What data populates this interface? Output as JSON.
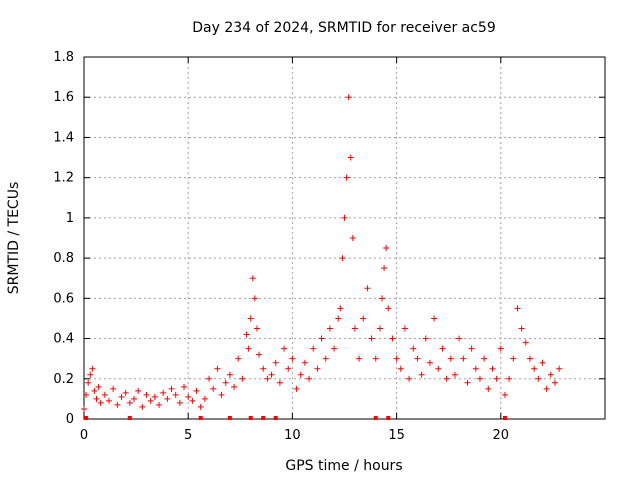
{
  "chart_data": {
    "type": "scatter",
    "title": "Day 234 of 2024, SRMTID for receiver ac59",
    "xlabel": "GPS time / hours",
    "ylabel": "SRMTID / TECUs",
    "xlim": [
      0,
      25
    ],
    "ylim": [
      0,
      1.8
    ],
    "x_ticks": [
      0,
      5,
      10,
      15,
      20
    ],
    "x_tick_labels": [
      "0",
      "5",
      "10",
      "15",
      "20"
    ],
    "y_ticks": [
      0,
      0.2,
      0.4,
      0.6,
      0.8,
      1.0,
      1.2,
      1.4,
      1.6,
      1.8
    ],
    "y_tick_labels": [
      "0",
      "0.2",
      "0.4",
      "0.6",
      "0.8",
      "1",
      "1.2",
      "1.4",
      "1.6",
      "1.8"
    ],
    "grid": true,
    "marker": "+",
    "color": "#ff0000",
    "series": [
      {
        "name": "SRMTID",
        "x": [
          0.0,
          0.1,
          0.2,
          0.3,
          0.4,
          0.5,
          0.6,
          0.7,
          0.8,
          1.0,
          1.2,
          1.4,
          1.6,
          1.8,
          2.0,
          2.2,
          2.4,
          2.6,
          2.8,
          3.0,
          3.2,
          3.4,
          3.6,
          3.8,
          4.0,
          4.2,
          4.4,
          4.6,
          4.8,
          5.0,
          5.2,
          5.4,
          5.6,
          5.8,
          6.0,
          6.2,
          6.4,
          6.6,
          6.8,
          7.0,
          7.2,
          7.4,
          7.6,
          7.8,
          7.9,
          8.0,
          8.1,
          8.2,
          8.3,
          8.4,
          8.6,
          8.8,
          9.0,
          9.2,
          9.4,
          9.6,
          9.8,
          10.0,
          10.2,
          10.4,
          10.6,
          10.8,
          11.0,
          11.2,
          11.4,
          11.6,
          11.8,
          12.0,
          12.2,
          12.3,
          12.4,
          12.5,
          12.6,
          12.7,
          12.8,
          12.9,
          13.0,
          13.2,
          13.4,
          13.6,
          13.8,
          14.0,
          14.2,
          14.3,
          14.4,
          14.5,
          14.6,
          14.8,
          15.0,
          15.2,
          15.4,
          15.6,
          15.8,
          16.0,
          16.2,
          16.4,
          16.6,
          16.8,
          17.0,
          17.2,
          17.4,
          17.6,
          17.8,
          18.0,
          18.2,
          18.4,
          18.6,
          18.8,
          19.0,
          19.2,
          19.4,
          19.6,
          19.8,
          20.0,
          20.2,
          20.4,
          20.6,
          20.8,
          21.0,
          21.2,
          21.4,
          21.6,
          21.8,
          22.0,
          22.2,
          22.4,
          22.6,
          22.8
        ],
        "y": [
          0.05,
          0.12,
          0.18,
          0.22,
          0.25,
          0.14,
          0.1,
          0.16,
          0.08,
          0.12,
          0.09,
          0.15,
          0.07,
          0.11,
          0.13,
          0.08,
          0.1,
          0.14,
          0.06,
          0.12,
          0.09,
          0.11,
          0.07,
          0.13,
          0.1,
          0.15,
          0.12,
          0.08,
          0.16,
          0.11,
          0.09,
          0.14,
          0.06,
          0.1,
          0.2,
          0.15,
          0.25,
          0.12,
          0.18,
          0.22,
          0.16,
          0.3,
          0.2,
          0.42,
          0.35,
          0.5,
          0.7,
          0.6,
          0.45,
          0.32,
          0.25,
          0.2,
          0.22,
          0.28,
          0.18,
          0.35,
          0.25,
          0.3,
          0.15,
          0.22,
          0.28,
          0.2,
          0.35,
          0.25,
          0.4,
          0.3,
          0.45,
          0.35,
          0.5,
          0.55,
          0.8,
          1.0,
          1.2,
          1.6,
          1.3,
          0.9,
          0.45,
          0.3,
          0.5,
          0.65,
          0.4,
          0.3,
          0.45,
          0.6,
          0.75,
          0.85,
          0.55,
          0.4,
          0.3,
          0.25,
          0.45,
          0.2,
          0.35,
          0.3,
          0.22,
          0.4,
          0.28,
          0.5,
          0.25,
          0.35,
          0.2,
          0.3,
          0.22,
          0.4,
          0.3,
          0.18,
          0.35,
          0.25,
          0.2,
          0.3,
          0.15,
          0.25,
          0.2,
          0.35,
          0.12,
          0.2,
          0.3,
          0.55,
          0.45,
          0.38,
          0.3,
          0.25,
          0.2,
          0.28,
          0.15,
          0.22,
          0.18,
          0.25
        ]
      }
    ],
    "baseline_marks_x": [
      0.1,
      2.2,
      5.6,
      7.0,
      8.0,
      8.6,
      9.2,
      14.0,
      14.6,
      20.2
    ]
  }
}
